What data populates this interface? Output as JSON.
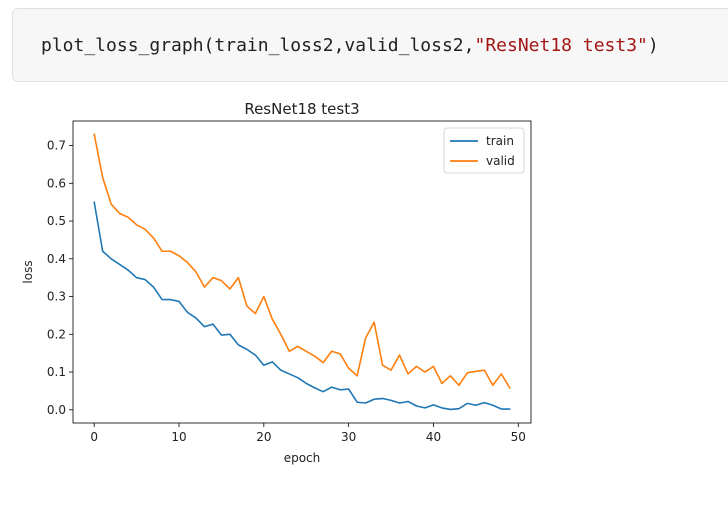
{
  "code_cell": {
    "call": "plot_loss_graph(train_loss2,valid_loss2,",
    "arg_string": "\"ResNet18 test3\"",
    "close": ")"
  },
  "chart_data": {
    "type": "line",
    "title": "ResNet18 test3",
    "xlabel": "epoch",
    "ylabel": "loss",
    "xlim": [
      -2.5,
      51.5
    ],
    "ylim": [
      -0.035,
      0.765
    ],
    "xticks": [
      0,
      10,
      20,
      30,
      40,
      50
    ],
    "yticks": [
      0.0,
      0.1,
      0.2,
      0.3,
      0.4,
      0.5,
      0.6,
      0.7
    ],
    "grid": false,
    "legend": "top-right",
    "x": [
      0,
      1,
      2,
      3,
      4,
      5,
      6,
      7,
      8,
      9,
      10,
      11,
      12,
      13,
      14,
      15,
      16,
      17,
      18,
      19,
      20,
      21,
      22,
      23,
      24,
      25,
      26,
      27,
      28,
      29,
      30,
      31,
      32,
      33,
      34,
      35,
      36,
      37,
      38,
      39,
      40,
      41,
      42,
      43,
      44,
      45,
      46,
      47,
      48,
      49
    ],
    "series": [
      {
        "name": "train",
        "color": "#1f77b4",
        "values": [
          0.55,
          0.42,
          0.4,
          0.385,
          0.37,
          0.35,
          0.345,
          0.325,
          0.292,
          0.292,
          0.287,
          0.258,
          0.243,
          0.22,
          0.227,
          0.198,
          0.2,
          0.172,
          0.16,
          0.145,
          0.118,
          0.127,
          0.105,
          0.095,
          0.085,
          0.07,
          0.058,
          0.048,
          0.06,
          0.053,
          0.055,
          0.02,
          0.018,
          0.028,
          0.03,
          0.025,
          0.018,
          0.022,
          0.01,
          0.005,
          0.013,
          0.005,
          0.001,
          0.003,
          0.017,
          0.012,
          0.019,
          0.012,
          0.002,
          0.002
        ]
      },
      {
        "name": "valid",
        "color": "#ff7f0e",
        "values": [
          0.73,
          0.615,
          0.545,
          0.52,
          0.51,
          0.49,
          0.478,
          0.455,
          0.42,
          0.42,
          0.408,
          0.39,
          0.365,
          0.325,
          0.35,
          0.342,
          0.32,
          0.35,
          0.275,
          0.255,
          0.3,
          0.24,
          0.2,
          0.155,
          0.168,
          0.155,
          0.142,
          0.125,
          0.155,
          0.148,
          0.11,
          0.09,
          0.19,
          0.232,
          0.118,
          0.105,
          0.145,
          0.095,
          0.115,
          0.1,
          0.115,
          0.07,
          0.09,
          0.065,
          0.098,
          0.102,
          0.105,
          0.065,
          0.095,
          0.058
        ]
      }
    ]
  }
}
